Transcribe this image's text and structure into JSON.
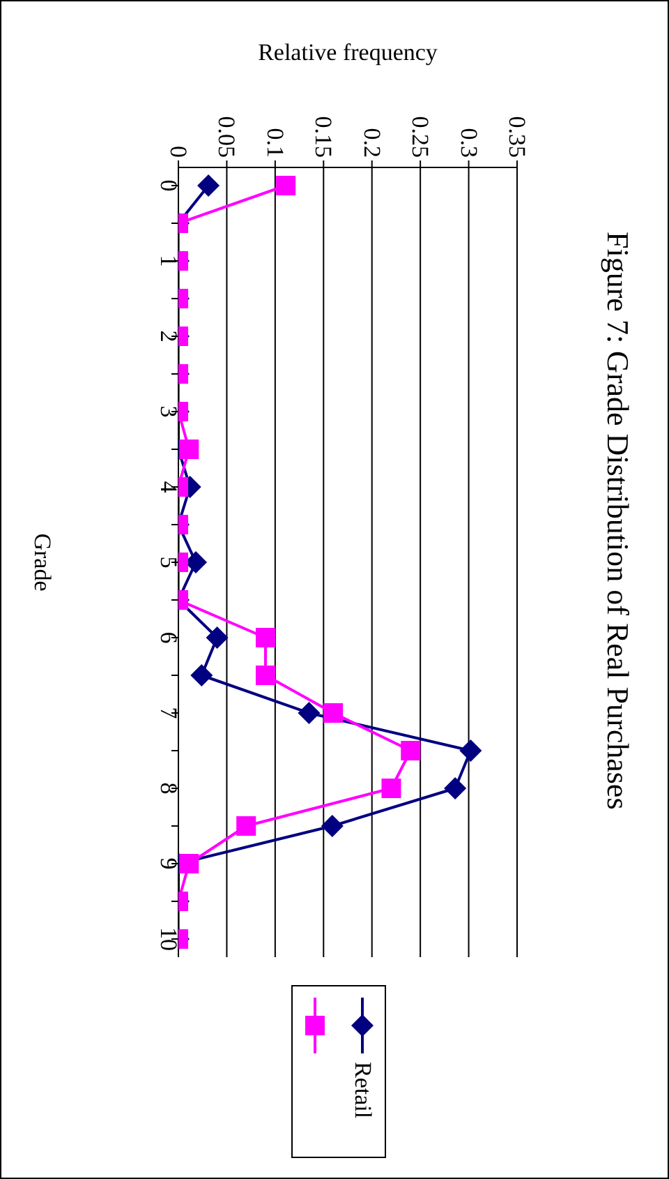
{
  "chart_data": {
    "type": "line",
    "orientation": "horizontal",
    "title": "Figure 7: Grade Distribution of Real Purchases",
    "ylabel": "Grade",
    "xlabel": "Relative frequency",
    "categories": [
      "0",
      null,
      "1",
      null,
      "2",
      null,
      "3",
      null,
      "4",
      null,
      "5",
      null,
      "6",
      null,
      "7",
      null,
      "8",
      null,
      "9",
      null,
      "10"
    ],
    "series": [
      {
        "name": "Retail",
        "color": "#000080",
        "marker": "diamond",
        "values": [
          0.031,
          0,
          0,
          0,
          0,
          0,
          0,
          0,
          0.012,
          0,
          0.018,
          0,
          0.04,
          0.024,
          0.135,
          0.302,
          0.286,
          0.159,
          0,
          0,
          0
        ]
      },
      {
        "color": "#ff00ff",
        "marker": "square",
        "values": [
          0.111,
          0,
          0,
          0,
          0,
          0,
          0,
          0.011,
          0,
          0,
          0,
          0,
          0.09,
          0.09,
          0.16,
          0.24,
          0.22,
          0.07,
          0.011,
          0,
          0
        ]
      }
    ],
    "xlim": [
      0,
      0.35
    ],
    "xticks": [
      0,
      0.05,
      0.1,
      0.15,
      0.2,
      0.25,
      0.3,
      0.35
    ],
    "grid": "x",
    "legend": "bottom left",
    "line_style": "solid"
  }
}
